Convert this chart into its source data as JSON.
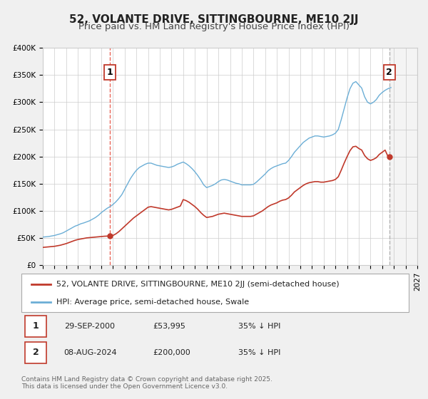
{
  "title": "52, VOLANTE DRIVE, SITTINGBOURNE, ME10 2JJ",
  "subtitle": "Price paid vs. HM Land Registry's House Price Index (HPI)",
  "ylim": [
    0,
    400000
  ],
  "yticks": [
    0,
    50000,
    100000,
    150000,
    200000,
    250000,
    300000,
    350000,
    400000
  ],
  "ytick_labels": [
    "£0",
    "£50K",
    "£100K",
    "£150K",
    "£200K",
    "£250K",
    "£300K",
    "£350K",
    "£400K"
  ],
  "xlim_start": 1995.0,
  "xlim_end": 2027.0,
  "xticks": [
    1995,
    1996,
    1997,
    1998,
    1999,
    2000,
    2001,
    2002,
    2003,
    2004,
    2005,
    2006,
    2007,
    2008,
    2009,
    2010,
    2011,
    2012,
    2013,
    2014,
    2015,
    2016,
    2017,
    2018,
    2019,
    2020,
    2021,
    2022,
    2023,
    2024,
    2025,
    2026,
    2027
  ],
  "hpi_color": "#6baed6",
  "price_color": "#c0392b",
  "marker1_date": 2000.75,
  "marker1_value": 53995,
  "marker2_date": 2024.6,
  "marker2_value": 200000,
  "vline1_color": "#e74c3c",
  "vline2_color": "#aaaaaa",
  "background_color": "#f0f0f0",
  "plot_bg_color": "#ffffff",
  "legend_label_price": "52, VOLANTE DRIVE, SITTINGBOURNE, ME10 2JJ (semi-detached house)",
  "legend_label_hpi": "HPI: Average price, semi-detached house, Swale",
  "annotation1_label": "1",
  "annotation2_label": "2",
  "table_row1": [
    "1",
    "29-SEP-2000",
    "£53,995",
    "35% ↓ HPI"
  ],
  "table_row2": [
    "2",
    "08-AUG-2024",
    "£200,000",
    "35% ↓ HPI"
  ],
  "footer": "Contains HM Land Registry data © Crown copyright and database right 2025.\nThis data is licensed under the Open Government Licence v3.0.",
  "title_fontsize": 11,
  "subtitle_fontsize": 9.5,
  "tick_fontsize": 7.5,
  "legend_fontsize": 8,
  "table_fontsize": 8,
  "footer_fontsize": 6.5,
  "hpi_data_x": [
    1995.0,
    1995.25,
    1995.5,
    1995.75,
    1996.0,
    1996.25,
    1996.5,
    1996.75,
    1997.0,
    1997.25,
    1997.5,
    1997.75,
    1998.0,
    1998.25,
    1998.5,
    1998.75,
    1999.0,
    1999.25,
    1999.5,
    1999.75,
    2000.0,
    2000.25,
    2000.5,
    2000.75,
    2001.0,
    2001.25,
    2001.5,
    2001.75,
    2002.0,
    2002.25,
    2002.5,
    2002.75,
    2003.0,
    2003.25,
    2003.5,
    2003.75,
    2004.0,
    2004.25,
    2004.5,
    2004.75,
    2005.0,
    2005.25,
    2005.5,
    2005.75,
    2006.0,
    2006.25,
    2006.5,
    2006.75,
    2007.0,
    2007.25,
    2007.5,
    2007.75,
    2008.0,
    2008.25,
    2008.5,
    2008.75,
    2009.0,
    2009.25,
    2009.5,
    2009.75,
    2010.0,
    2010.25,
    2010.5,
    2010.75,
    2011.0,
    2011.25,
    2011.5,
    2011.75,
    2012.0,
    2012.25,
    2012.5,
    2012.75,
    2013.0,
    2013.25,
    2013.5,
    2013.75,
    2014.0,
    2014.25,
    2014.5,
    2014.75,
    2015.0,
    2015.25,
    2015.5,
    2015.75,
    2016.0,
    2016.25,
    2016.5,
    2016.75,
    2017.0,
    2017.25,
    2017.5,
    2017.75,
    2018.0,
    2018.25,
    2018.5,
    2018.75,
    2019.0,
    2019.25,
    2019.5,
    2019.75,
    2020.0,
    2020.25,
    2020.5,
    2020.75,
    2021.0,
    2021.25,
    2021.5,
    2021.75,
    2022.0,
    2022.25,
    2022.5,
    2022.75,
    2023.0,
    2023.25,
    2023.5,
    2023.75,
    2024.0,
    2024.25,
    2024.5,
    2024.75
  ],
  "hpi_data_y": [
    52000,
    52500,
    53000,
    54000,
    55000,
    56500,
    58000,
    60000,
    63000,
    66000,
    69000,
    72000,
    74000,
    76500,
    78000,
    80000,
    82000,
    85000,
    88000,
    92000,
    97000,
    101000,
    105000,
    108000,
    112000,
    117000,
    123000,
    130000,
    140000,
    150000,
    160000,
    168000,
    175000,
    180000,
    183000,
    186000,
    188000,
    188000,
    186000,
    184000,
    183000,
    182000,
    181000,
    180000,
    181000,
    183000,
    186000,
    188000,
    190000,
    187000,
    183000,
    178000,
    172000,
    165000,
    157000,
    148000,
    143000,
    145000,
    147000,
    150000,
    154000,
    157000,
    158000,
    157000,
    155000,
    153000,
    151000,
    150000,
    148000,
    148000,
    148000,
    148000,
    149000,
    153000,
    158000,
    163000,
    168000,
    174000,
    178000,
    181000,
    183000,
    185000,
    187000,
    188000,
    193000,
    200000,
    208000,
    214000,
    220000,
    226000,
    230000,
    234000,
    236000,
    238000,
    238000,
    237000,
    236000,
    237000,
    238000,
    240000,
    243000,
    250000,
    268000,
    288000,
    308000,
    325000,
    335000,
    338000,
    332000,
    326000,
    310000,
    300000,
    297000,
    300000,
    305000,
    313000,
    318000,
    322000,
    325000,
    327000
  ],
  "price_data_x": [
    1995.0,
    1995.25,
    1995.5,
    1995.75,
    1996.0,
    1996.25,
    1996.5,
    1996.75,
    1997.0,
    1997.25,
    1997.5,
    1997.75,
    1998.0,
    1998.25,
    1998.5,
    1998.75,
    1999.0,
    1999.25,
    1999.5,
    1999.75,
    2000.0,
    2000.25,
    2000.5,
    2000.75,
    2001.0,
    2001.25,
    2001.5,
    2001.75,
    2002.0,
    2002.25,
    2002.5,
    2002.75,
    2003.0,
    2003.25,
    2003.5,
    2003.75,
    2004.0,
    2004.25,
    2004.5,
    2004.75,
    2005.0,
    2005.25,
    2005.5,
    2005.75,
    2006.0,
    2006.25,
    2006.5,
    2006.75,
    2007.0,
    2007.25,
    2007.5,
    2007.75,
    2008.0,
    2008.25,
    2008.5,
    2008.75,
    2009.0,
    2009.25,
    2009.5,
    2009.75,
    2010.0,
    2010.25,
    2010.5,
    2010.75,
    2011.0,
    2011.25,
    2011.5,
    2011.75,
    2012.0,
    2012.25,
    2012.5,
    2012.75,
    2013.0,
    2013.25,
    2013.5,
    2013.75,
    2014.0,
    2014.25,
    2014.5,
    2014.75,
    2015.0,
    2015.25,
    2015.5,
    2015.75,
    2016.0,
    2016.25,
    2016.5,
    2016.75,
    2017.0,
    2017.25,
    2017.5,
    2017.75,
    2018.0,
    2018.25,
    2018.5,
    2018.75,
    2019.0,
    2019.25,
    2019.5,
    2019.75,
    2020.0,
    2020.25,
    2020.5,
    2020.75,
    2021.0,
    2021.25,
    2021.5,
    2021.75,
    2022.0,
    2022.25,
    2022.5,
    2022.75,
    2023.0,
    2023.25,
    2023.5,
    2023.75,
    2024.0,
    2024.25,
    2024.5,
    2024.75
  ],
  "price_data_y": [
    33000,
    33500,
    34000,
    34500,
    35000,
    36000,
    37000,
    38500,
    40000,
    42000,
    44000,
    46000,
    47500,
    48500,
    49500,
    50500,
    51000,
    51500,
    52000,
    52500,
    53000,
    53500,
    53800,
    53995,
    55000,
    58000,
    62000,
    67000,
    72000,
    77000,
    82000,
    87000,
    91000,
    95000,
    99000,
    103000,
    107000,
    108000,
    107000,
    106000,
    105000,
    104000,
    103000,
    102000,
    103000,
    105000,
    107000,
    109000,
    121000,
    119000,
    116000,
    112000,
    108000,
    103000,
    97000,
    92000,
    88000,
    89000,
    90000,
    92000,
    94000,
    95000,
    96000,
    95000,
    94000,
    93000,
    92000,
    91000,
    90000,
    90000,
    90000,
    90000,
    91000,
    94000,
    97000,
    100000,
    104000,
    108000,
    111000,
    113000,
    115000,
    118000,
    120000,
    121000,
    124000,
    129000,
    135000,
    139000,
    143000,
    147000,
    150000,
    152000,
    153000,
    154000,
    154000,
    153000,
    153000,
    154000,
    155000,
    156000,
    158000,
    163000,
    175000,
    188000,
    200000,
    211000,
    218000,
    219000,
    215000,
    212000,
    202000,
    196000,
    193000,
    195000,
    198000,
    204000,
    208000,
    212000,
    200000,
    200000
  ]
}
